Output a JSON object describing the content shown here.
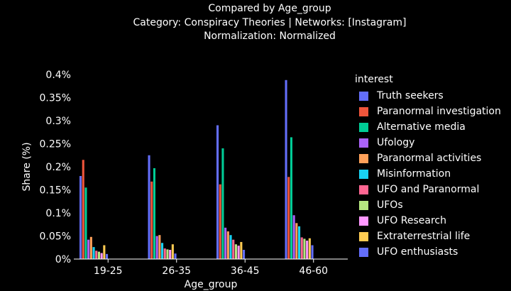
{
  "title_lines": [
    "Compared by Age_group",
    "Category: Conspiracy Theories | Networks: [Instagram]",
    "Normalization: Normalized"
  ],
  "legend_title": "interest",
  "chart_data": {
    "type": "bar",
    "title": "Compared by Age_group",
    "subtitle": "Category: Conspiracy Theories | Networks: [Instagram] | Normalization: Normalized",
    "xlabel": "Age_group",
    "ylabel": "Share (%)",
    "ylim": [
      0,
      0.4
    ],
    "yticks": [
      "0%",
      "0.05%",
      "0.1%",
      "0.15%",
      "0.2%",
      "0.25%",
      "0.3%",
      "0.35%",
      "0.4%"
    ],
    "ytick_values": [
      0,
      0.05,
      0.1,
      0.15,
      0.2,
      0.25,
      0.3,
      0.35,
      0.4
    ],
    "categories": [
      "19-25",
      "26-35",
      "36-45",
      "46-60"
    ],
    "grid": false,
    "legend_position": "right",
    "series": [
      {
        "name": "Truth seekers",
        "color": "#636efa",
        "values": [
          0.18,
          0.225,
          0.29,
          0.388
        ]
      },
      {
        "name": "Paranormal investigation",
        "color": "#ef553b",
        "values": [
          0.215,
          0.168,
          0.162,
          0.178
        ]
      },
      {
        "name": "Alternative media",
        "color": "#00cc96",
        "values": [
          0.155,
          0.197,
          0.24,
          0.264
        ]
      },
      {
        "name": "Ufology",
        "color": "#ab63fa",
        "values": [
          0.042,
          0.05,
          0.068,
          0.095
        ]
      },
      {
        "name": "Paranormal activities",
        "color": "#ffa15a",
        "values": [
          0.048,
          0.052,
          0.06,
          0.078
        ]
      },
      {
        "name": "Misinformation",
        "color": "#19d3f3",
        "values": [
          0.026,
          0.035,
          0.052,
          0.071
        ]
      },
      {
        "name": "UFO and Paranormal",
        "color": "#ff6692",
        "values": [
          0.018,
          0.023,
          0.042,
          0.047
        ]
      },
      {
        "name": "UFOs",
        "color": "#b6e880",
        "values": [
          0.016,
          0.021,
          0.032,
          0.044
        ]
      },
      {
        "name": "UFO Research",
        "color": "#ff97ff",
        "values": [
          0.013,
          0.02,
          0.029,
          0.04
        ]
      },
      {
        "name": "Extraterrestrial life",
        "color": "#fecb52",
        "values": [
          0.03,
          0.032,
          0.037,
          0.045
        ]
      },
      {
        "name": "UFO enthusiasts",
        "color": "#636efa",
        "values": [
          0.011,
          0.012,
          0.02,
          0.03
        ]
      }
    ]
  }
}
